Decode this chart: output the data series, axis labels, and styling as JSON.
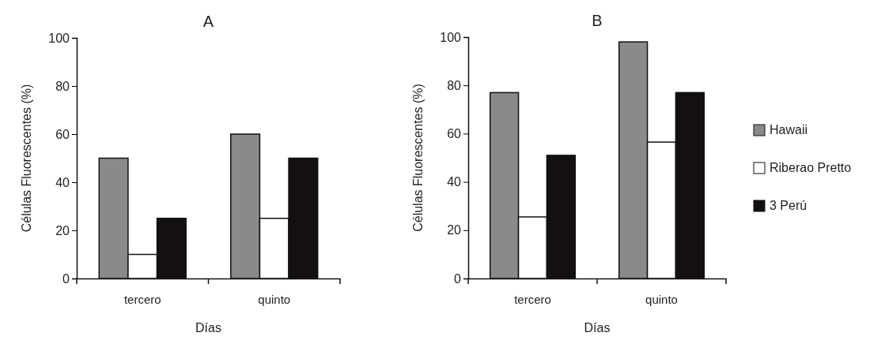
{
  "chart_data": [
    {
      "type": "bar",
      "title": "A",
      "xlabel": "Días",
      "ylabel": "Células Fluorescentes (%)",
      "categories": [
        "tercero",
        "quinto"
      ],
      "series": [
        {
          "color": "#8c8a89",
          "values": [
            50,
            60
          ]
        },
        {
          "color": "#ffffff",
          "values": [
            10,
            25
          ]
        },
        {
          "color": "#141010",
          "values": [
            25,
            50
          ]
        }
      ],
      "ylim": [
        0,
        100
      ],
      "yticks": [
        0,
        20,
        40,
        60,
        80,
        100
      ],
      "legend": false
    },
    {
      "type": "bar",
      "title": "B",
      "xlabel": "Días",
      "ylabel": "Células Fluorescentes (%)",
      "categories": [
        "tercero",
        "quinto"
      ],
      "series": [
        {
          "name": "Hawaii",
          "color": "#8c8a89",
          "values": [
            77,
            98
          ]
        },
        {
          "name": "Riberao Pretto",
          "color": "#ffffff",
          "values": [
            25.5,
            56.5
          ]
        },
        {
          "name": "3 Perú",
          "color": "#141010",
          "values": [
            51,
            77
          ]
        }
      ],
      "ylim": [
        0,
        100
      ],
      "yticks": [
        0,
        20,
        40,
        60,
        80,
        100
      ],
      "legend": "right"
    }
  ]
}
